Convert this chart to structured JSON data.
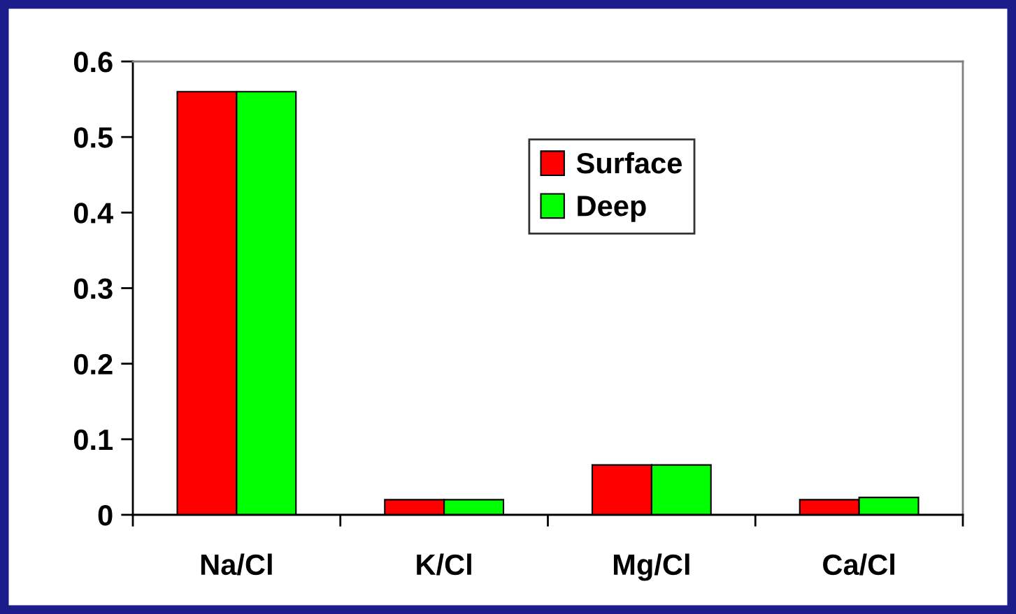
{
  "chart_data": {
    "type": "bar",
    "categories": [
      "Na/Cl",
      "K/Cl",
      "Mg/Cl",
      "Ca/Cl"
    ],
    "series": [
      {
        "name": "Surface",
        "color": "#ff0000",
        "values": [
          0.56,
          0.02,
          0.066,
          0.02
        ]
      },
      {
        "name": "Deep",
        "color": "#00ff00",
        "values": [
          0.56,
          0.02,
          0.066,
          0.023
        ]
      }
    ],
    "ylim": [
      0,
      0.6
    ],
    "yticks": [
      0,
      0.1,
      0.2,
      0.3,
      0.4,
      0.5,
      0.6
    ],
    "grid": false,
    "legend": "top right"
  }
}
